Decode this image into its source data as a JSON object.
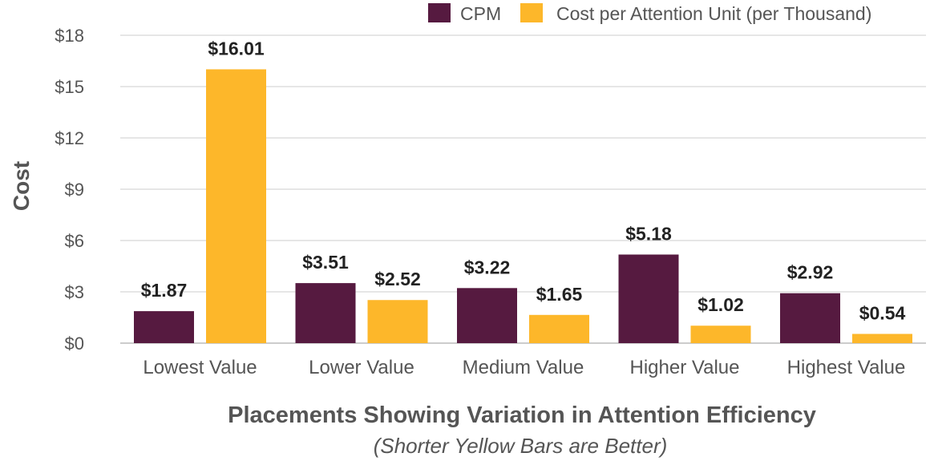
{
  "colors": {
    "cpm": "#561a40",
    "cost_per_attention": "#fdb72a",
    "grid": "#dddddd",
    "text": "#555555",
    "data_label": "#222222"
  },
  "chart_data": {
    "type": "bar",
    "title": "",
    "xlabel": "Placements Showing Variation in Attention Efficiency",
    "subtitle": "(Shorter Yellow Bars are Better)",
    "ylabel": "Cost",
    "ylim": [
      0,
      18
    ],
    "yticks": [
      0,
      3,
      6,
      9,
      12,
      15,
      18
    ],
    "ytick_labels": [
      "$0",
      "$3",
      "$6",
      "$9",
      "$12",
      "$15",
      "$18"
    ],
    "grid": "horizontal",
    "legend_position": "top-right",
    "categories": [
      "Lowest Value",
      "Lower Value",
      "Medium Value",
      "Higher Value",
      "Highest Value"
    ],
    "series": [
      {
        "name": "CPM",
        "color": "#561a40",
        "values": [
          1.87,
          3.51,
          3.22,
          5.18,
          2.92
        ],
        "labels": [
          "$1.87",
          "$3.51",
          "$3.22",
          "$5.18",
          "$2.92"
        ]
      },
      {
        "name": "Cost per Attention Unit (per Thousand)",
        "color": "#fdb72a",
        "values": [
          16.01,
          2.52,
          1.65,
          1.02,
          0.54
        ],
        "labels": [
          "$16.01",
          "$2.52",
          "$1.65",
          "$1.02",
          "$0.54"
        ]
      }
    ]
  }
}
